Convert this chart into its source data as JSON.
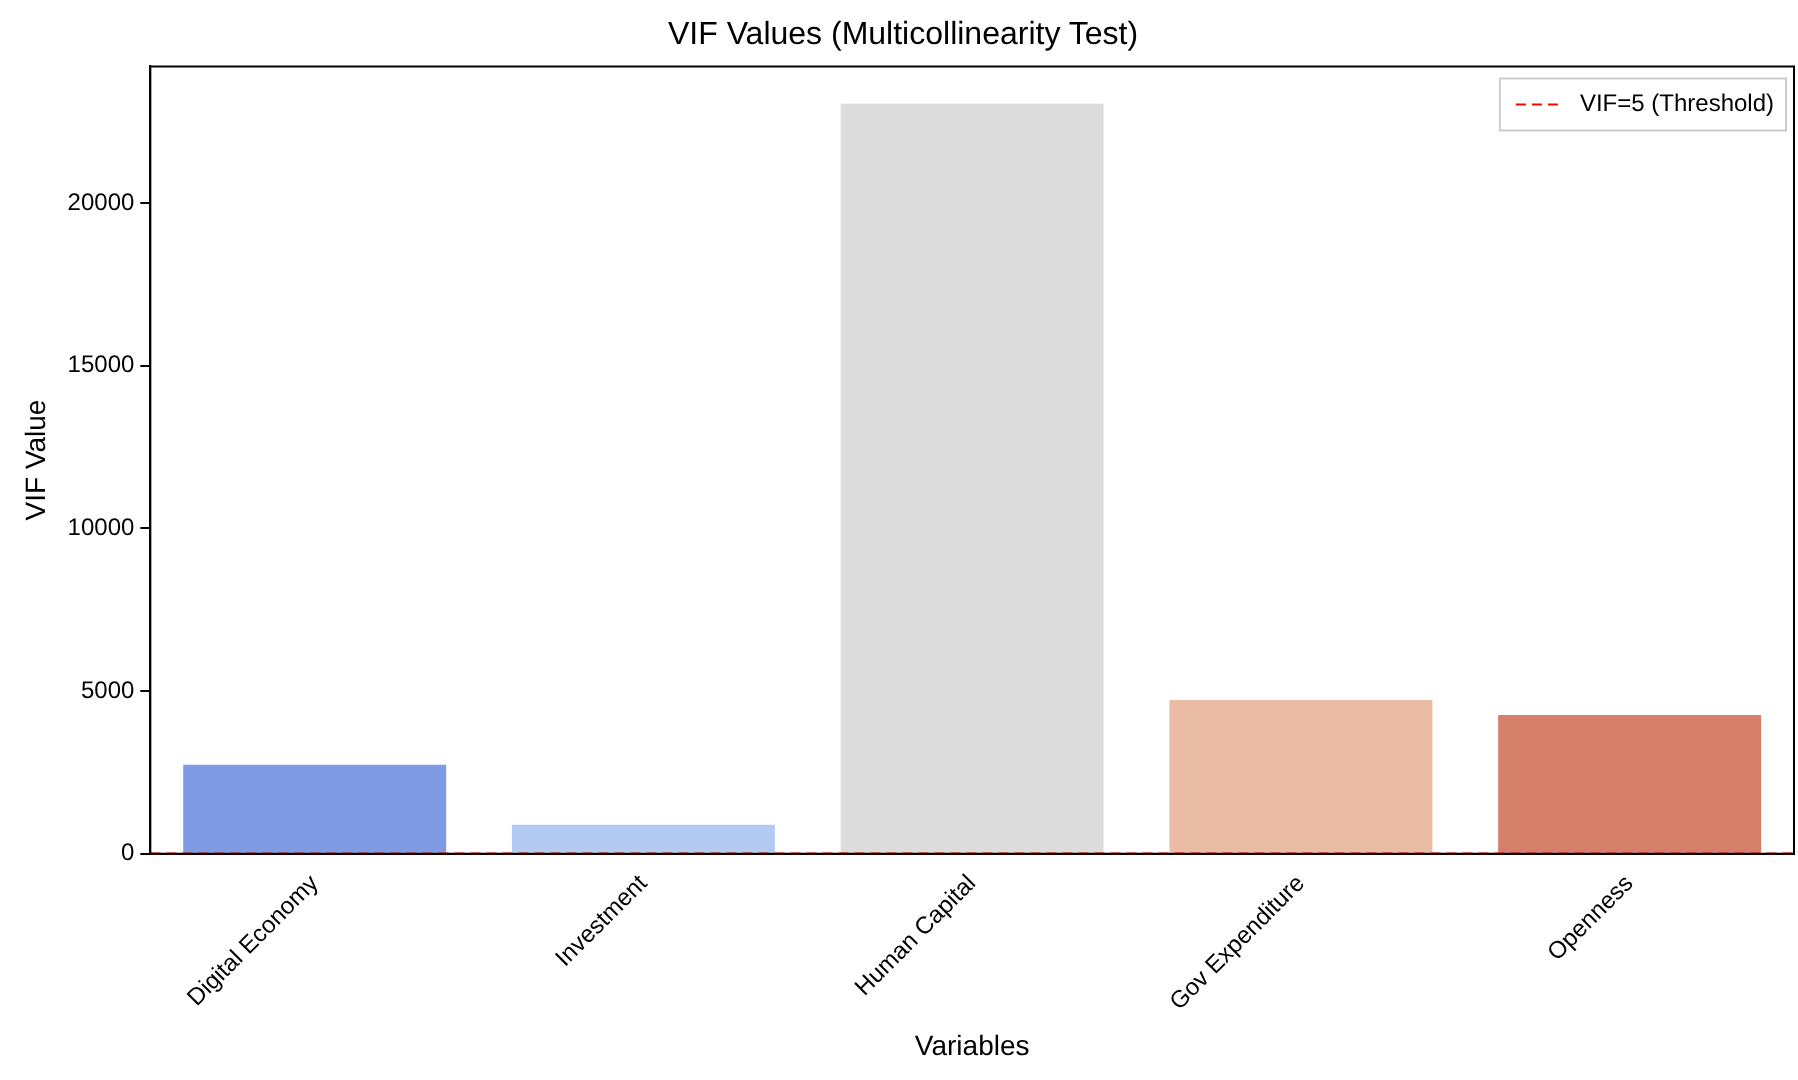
{
  "chart_data": {
    "type": "bar",
    "title": "VIF Values (Multicollinearity Test)",
    "xlabel": "Variables",
    "ylabel": "VIF Value",
    "categories": [
      "Digital Economy",
      "Investment",
      "Human Capital",
      "Gov Expenditure",
      "Openness"
    ],
    "values": [
      2730,
      885,
      23050,
      4720,
      4260
    ],
    "colors": [
      "#7f9be3",
      "#b3cbf2",
      "#dcdcdc",
      "#ebbca5",
      "#d6806b"
    ],
    "ylim": [
      0,
      24200
    ],
    "yticks": [
      0,
      5000,
      10000,
      15000,
      20000
    ],
    "grid": false,
    "legend": "top right",
    "ref_lines": [
      {
        "axis": "y",
        "value": 5,
        "label": "VIF=5 (Threshold)",
        "color": "#ff0000",
        "line_style": "dashed"
      }
    ]
  }
}
